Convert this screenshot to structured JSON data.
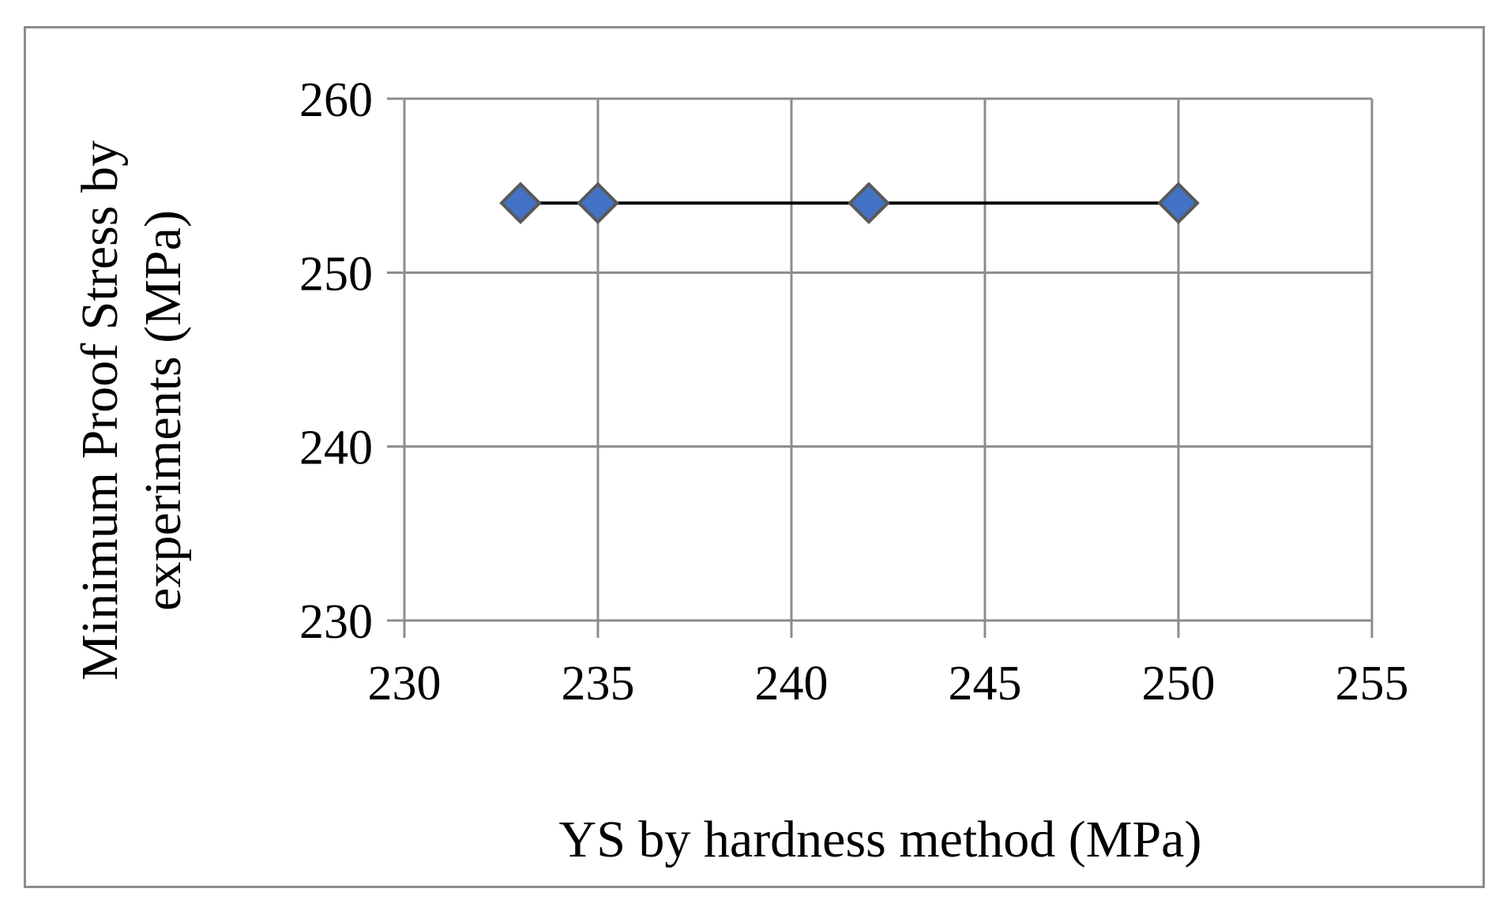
{
  "chart_data": {
    "type": "scatter",
    "xlabel": "YS by hardness method (MPa)",
    "ylabel_lines": [
      "Minimum Proof Stress by",
      "experiments (MPa)"
    ],
    "xlim": [
      230,
      255
    ],
    "ylim": [
      230,
      260
    ],
    "x_ticks": [
      230,
      235,
      240,
      245,
      250,
      255
    ],
    "y_ticks": [
      230,
      240,
      250,
      260
    ],
    "grid": true,
    "legend": "none",
    "series": [
      {
        "points": [
          {
            "x": 233,
            "y": 254
          },
          {
            "x": 235,
            "y": 254
          },
          {
            "x": 242,
            "y": 254
          },
          {
            "x": 250,
            "y": 254
          }
        ],
        "marker": "diamond",
        "marker_color": "#4472c4",
        "marker_edge": "#595959",
        "connect_line": true,
        "line_color": "#000000"
      }
    ]
  }
}
